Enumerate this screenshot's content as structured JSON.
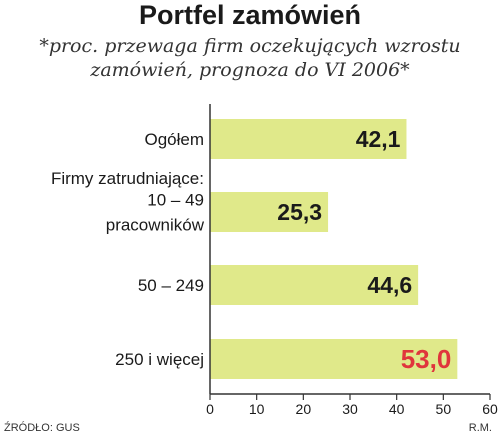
{
  "title": "Portfel zamówień",
  "subtitle": [
    "*proc. przewaga firm oczekujących wzrostu",
    "zamówień, prognoza do VI 2006*"
  ],
  "source": "ŹRÓDŁO: GUS",
  "author": "R.M.",
  "colors": {
    "bar": "#e0e98a",
    "text": "#1a1a1a",
    "highlight": "#e0353c",
    "axis": "#333333"
  },
  "chart_data": {
    "type": "bar",
    "orientation": "horizontal",
    "group_label": "Firmy zatrudniające:",
    "categories": [
      [
        "Ogółem"
      ],
      [
        "10 – 49",
        "pracowników"
      ],
      [
        "50 – 249"
      ],
      [
        "250 i więcej"
      ]
    ],
    "values": [
      42.1,
      25.3,
      44.6,
      53.0
    ],
    "value_labels": [
      "42,1",
      "25,3",
      "44,6",
      "53,0"
    ],
    "highlight_index": 3,
    "xlim": [
      0,
      60
    ],
    "ticks": [
      0,
      10,
      20,
      30,
      40,
      50,
      60
    ],
    "grid": false
  }
}
